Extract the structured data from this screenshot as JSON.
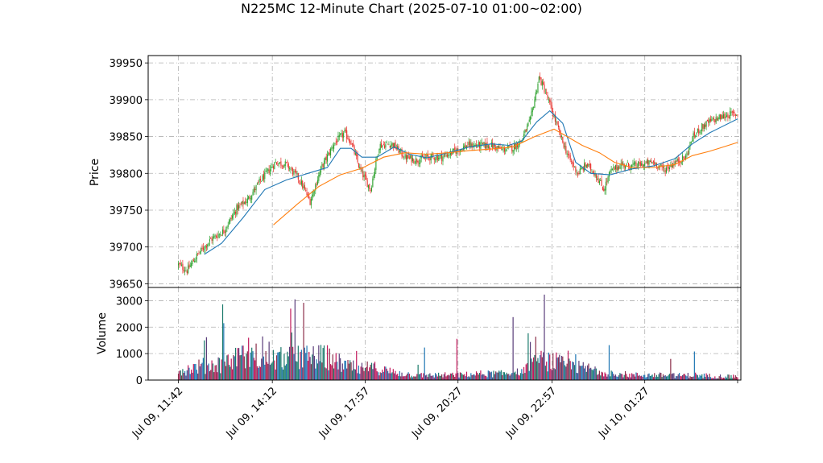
{
  "chart_data": [
    {
      "type": "candlestick",
      "panel": "price",
      "title": "N225MC 12-Minute Chart (2025-07-10 01:00~02:00)",
      "ylabel": "Price",
      "ylim": [
        39645,
        39960
      ],
      "yticks": [
        39650,
        39700,
        39750,
        39800,
        39850,
        39900,
        39950
      ],
      "grid": true,
      "up_color": "#2ca02c",
      "down_color": "#e8302a",
      "ma_colors": [
        "#1f77b4",
        "#ff7f0e"
      ],
      "close_path": [
        [
          0,
          39676
        ],
        [
          8,
          39668
        ],
        [
          18,
          39690
        ],
        [
          30,
          39710
        ],
        [
          42,
          39722
        ],
        [
          54,
          39752
        ],
        [
          64,
          39764
        ],
        [
          76,
          39790
        ],
        [
          90,
          39815
        ],
        [
          100,
          39812
        ],
        [
          112,
          39792
        ],
        [
          122,
          39762
        ],
        [
          132,
          39806
        ],
        [
          144,
          39840
        ],
        [
          154,
          39855
        ],
        [
          160,
          39842
        ],
        [
          168,
          39806
        ],
        [
          178,
          39778
        ],
        [
          186,
          39838
        ],
        [
          198,
          39840
        ],
        [
          210,
          39822
        ],
        [
          220,
          39818
        ],
        [
          232,
          39822
        ],
        [
          244,
          39822
        ],
        [
          256,
          39830
        ],
        [
          268,
          39838
        ],
        [
          280,
          39838
        ],
        [
          290,
          39838
        ],
        [
          300,
          39832
        ],
        [
          310,
          39835
        ],
        [
          318,
          39845
        ],
        [
          326,
          39872
        ],
        [
          334,
          39930
        ],
        [
          338,
          39918
        ],
        [
          346,
          39885
        ],
        [
          354,
          39850
        ],
        [
          362,
          39820
        ],
        [
          370,
          39800
        ],
        [
          378,
          39812
        ],
        [
          386,
          39800
        ],
        [
          394,
          39778
        ],
        [
          400,
          39802
        ],
        [
          410,
          39812
        ],
        [
          420,
          39810
        ],
        [
          430,
          39812
        ],
        [
          440,
          39815
        ],
        [
          450,
          39805
        ],
        [
          460,
          39815
        ],
        [
          470,
          39822
        ],
        [
          476,
          39848
        ],
        [
          484,
          39862
        ],
        [
          492,
          39870
        ],
        [
          500,
          39875
        ],
        [
          510,
          39880
        ],
        [
          518,
          39880
        ]
      ],
      "ma_short_path": [
        [
          24,
          39690
        ],
        [
          40,
          39705
        ],
        [
          60,
          39740
        ],
        [
          80,
          39778
        ],
        [
          100,
          39791
        ],
        [
          120,
          39800
        ],
        [
          138,
          39808
        ],
        [
          150,
          39834
        ],
        [
          160,
          39834
        ],
        [
          170,
          39822
        ],
        [
          184,
          39822
        ],
        [
          200,
          39836
        ],
        [
          214,
          39826
        ],
        [
          230,
          39821
        ],
        [
          250,
          39828
        ],
        [
          270,
          39836
        ],
        [
          290,
          39840
        ],
        [
          306,
          39838
        ],
        [
          318,
          39844
        ],
        [
          332,
          39870
        ],
        [
          344,
          39885
        ],
        [
          356,
          39868
        ],
        [
          368,
          39815
        ],
        [
          382,
          39800
        ],
        [
          400,
          39798
        ],
        [
          420,
          39806
        ],
        [
          440,
          39810
        ],
        [
          460,
          39820
        ],
        [
          476,
          39840
        ],
        [
          492,
          39855
        ],
        [
          518,
          39874
        ]
      ],
      "ma_long_path": [
        [
          88,
          39730
        ],
        [
          110,
          39758
        ],
        [
          130,
          39782
        ],
        [
          150,
          39798
        ],
        [
          170,
          39807
        ],
        [
          190,
          39822
        ],
        [
          210,
          39828
        ],
        [
          230,
          39826
        ],
        [
          250,
          39828
        ],
        [
          270,
          39831
        ],
        [
          290,
          39833
        ],
        [
          310,
          39836
        ],
        [
          330,
          39850
        ],
        [
          348,
          39860
        ],
        [
          360,
          39850
        ],
        [
          374,
          39838
        ],
        [
          390,
          39828
        ],
        [
          404,
          39815
        ],
        [
          420,
          39808
        ],
        [
          440,
          39808
        ],
        [
          460,
          39812
        ],
        [
          476,
          39824
        ],
        [
          492,
          39830
        ],
        [
          518,
          39842
        ]
      ]
    },
    {
      "type": "bar",
      "panel": "volume",
      "ylabel": "Volume",
      "ylim": [
        0,
        3500
      ],
      "yticks": [
        0,
        1000,
        2000,
        3000
      ],
      "grid": true,
      "base_profile": [
        [
          0,
          350
        ],
        [
          20,
          550
        ],
        [
          40,
          650
        ],
        [
          60,
          900
        ],
        [
          80,
          800
        ],
        [
          100,
          850
        ],
        [
          120,
          900
        ],
        [
          140,
          900
        ],
        [
          150,
          650
        ],
        [
          160,
          500
        ],
        [
          180,
          500
        ],
        [
          200,
          300
        ],
        [
          220,
          200
        ],
        [
          240,
          200
        ],
        [
          260,
          200
        ],
        [
          280,
          250
        ],
        [
          300,
          250
        ],
        [
          320,
          350
        ],
        [
          330,
          700
        ],
        [
          340,
          800
        ],
        [
          350,
          700
        ],
        [
          360,
          550
        ],
        [
          380,
          450
        ],
        [
          400,
          300
        ],
        [
          420,
          200
        ],
        [
          440,
          200
        ],
        [
          460,
          180
        ],
        [
          480,
          200
        ],
        [
          500,
          150
        ],
        [
          518,
          150
        ]
      ],
      "spikes": [
        [
          24,
          1500
        ],
        [
          26,
          1620
        ],
        [
          41,
          2860
        ],
        [
          42,
          2150
        ],
        [
          52,
          900
        ],
        [
          59,
          1300
        ],
        [
          65,
          1600
        ],
        [
          72,
          1380
        ],
        [
          78,
          1650
        ],
        [
          84,
          1450
        ],
        [
          104,
          2700
        ],
        [
          105,
          1800
        ],
        [
          108,
          3050
        ],
        [
          116,
          2920
        ],
        [
          146,
          1020
        ],
        [
          165,
          1100
        ],
        [
          178,
          580
        ],
        [
          222,
          580
        ],
        [
          228,
          1230
        ],
        [
          258,
          1560
        ],
        [
          310,
          2380
        ],
        [
          324,
          1770
        ],
        [
          326,
          1440
        ],
        [
          331,
          1640
        ],
        [
          339,
          3230
        ],
        [
          361,
          1110
        ],
        [
          368,
          980
        ],
        [
          399,
          1320
        ],
        [
          456,
          800
        ],
        [
          478,
          1080
        ]
      ]
    }
  ],
  "x_axis": {
    "x_range": [
      -28,
      521
    ],
    "ticks": [
      {
        "x": 0,
        "label": "Jul 09, 11:42"
      },
      {
        "x": 87,
        "label": "Jul 09, 14:12"
      },
      {
        "x": 173,
        "label": "Jul 09, 17:57"
      },
      {
        "x": 259,
        "label": "Jul 09, 20:27"
      },
      {
        "x": 346,
        "label": "Jul 09, 22:57"
      },
      {
        "x": 432,
        "label": "Jul 10, 01:27"
      },
      {
        "x": 518,
        "label": ""
      }
    ]
  }
}
